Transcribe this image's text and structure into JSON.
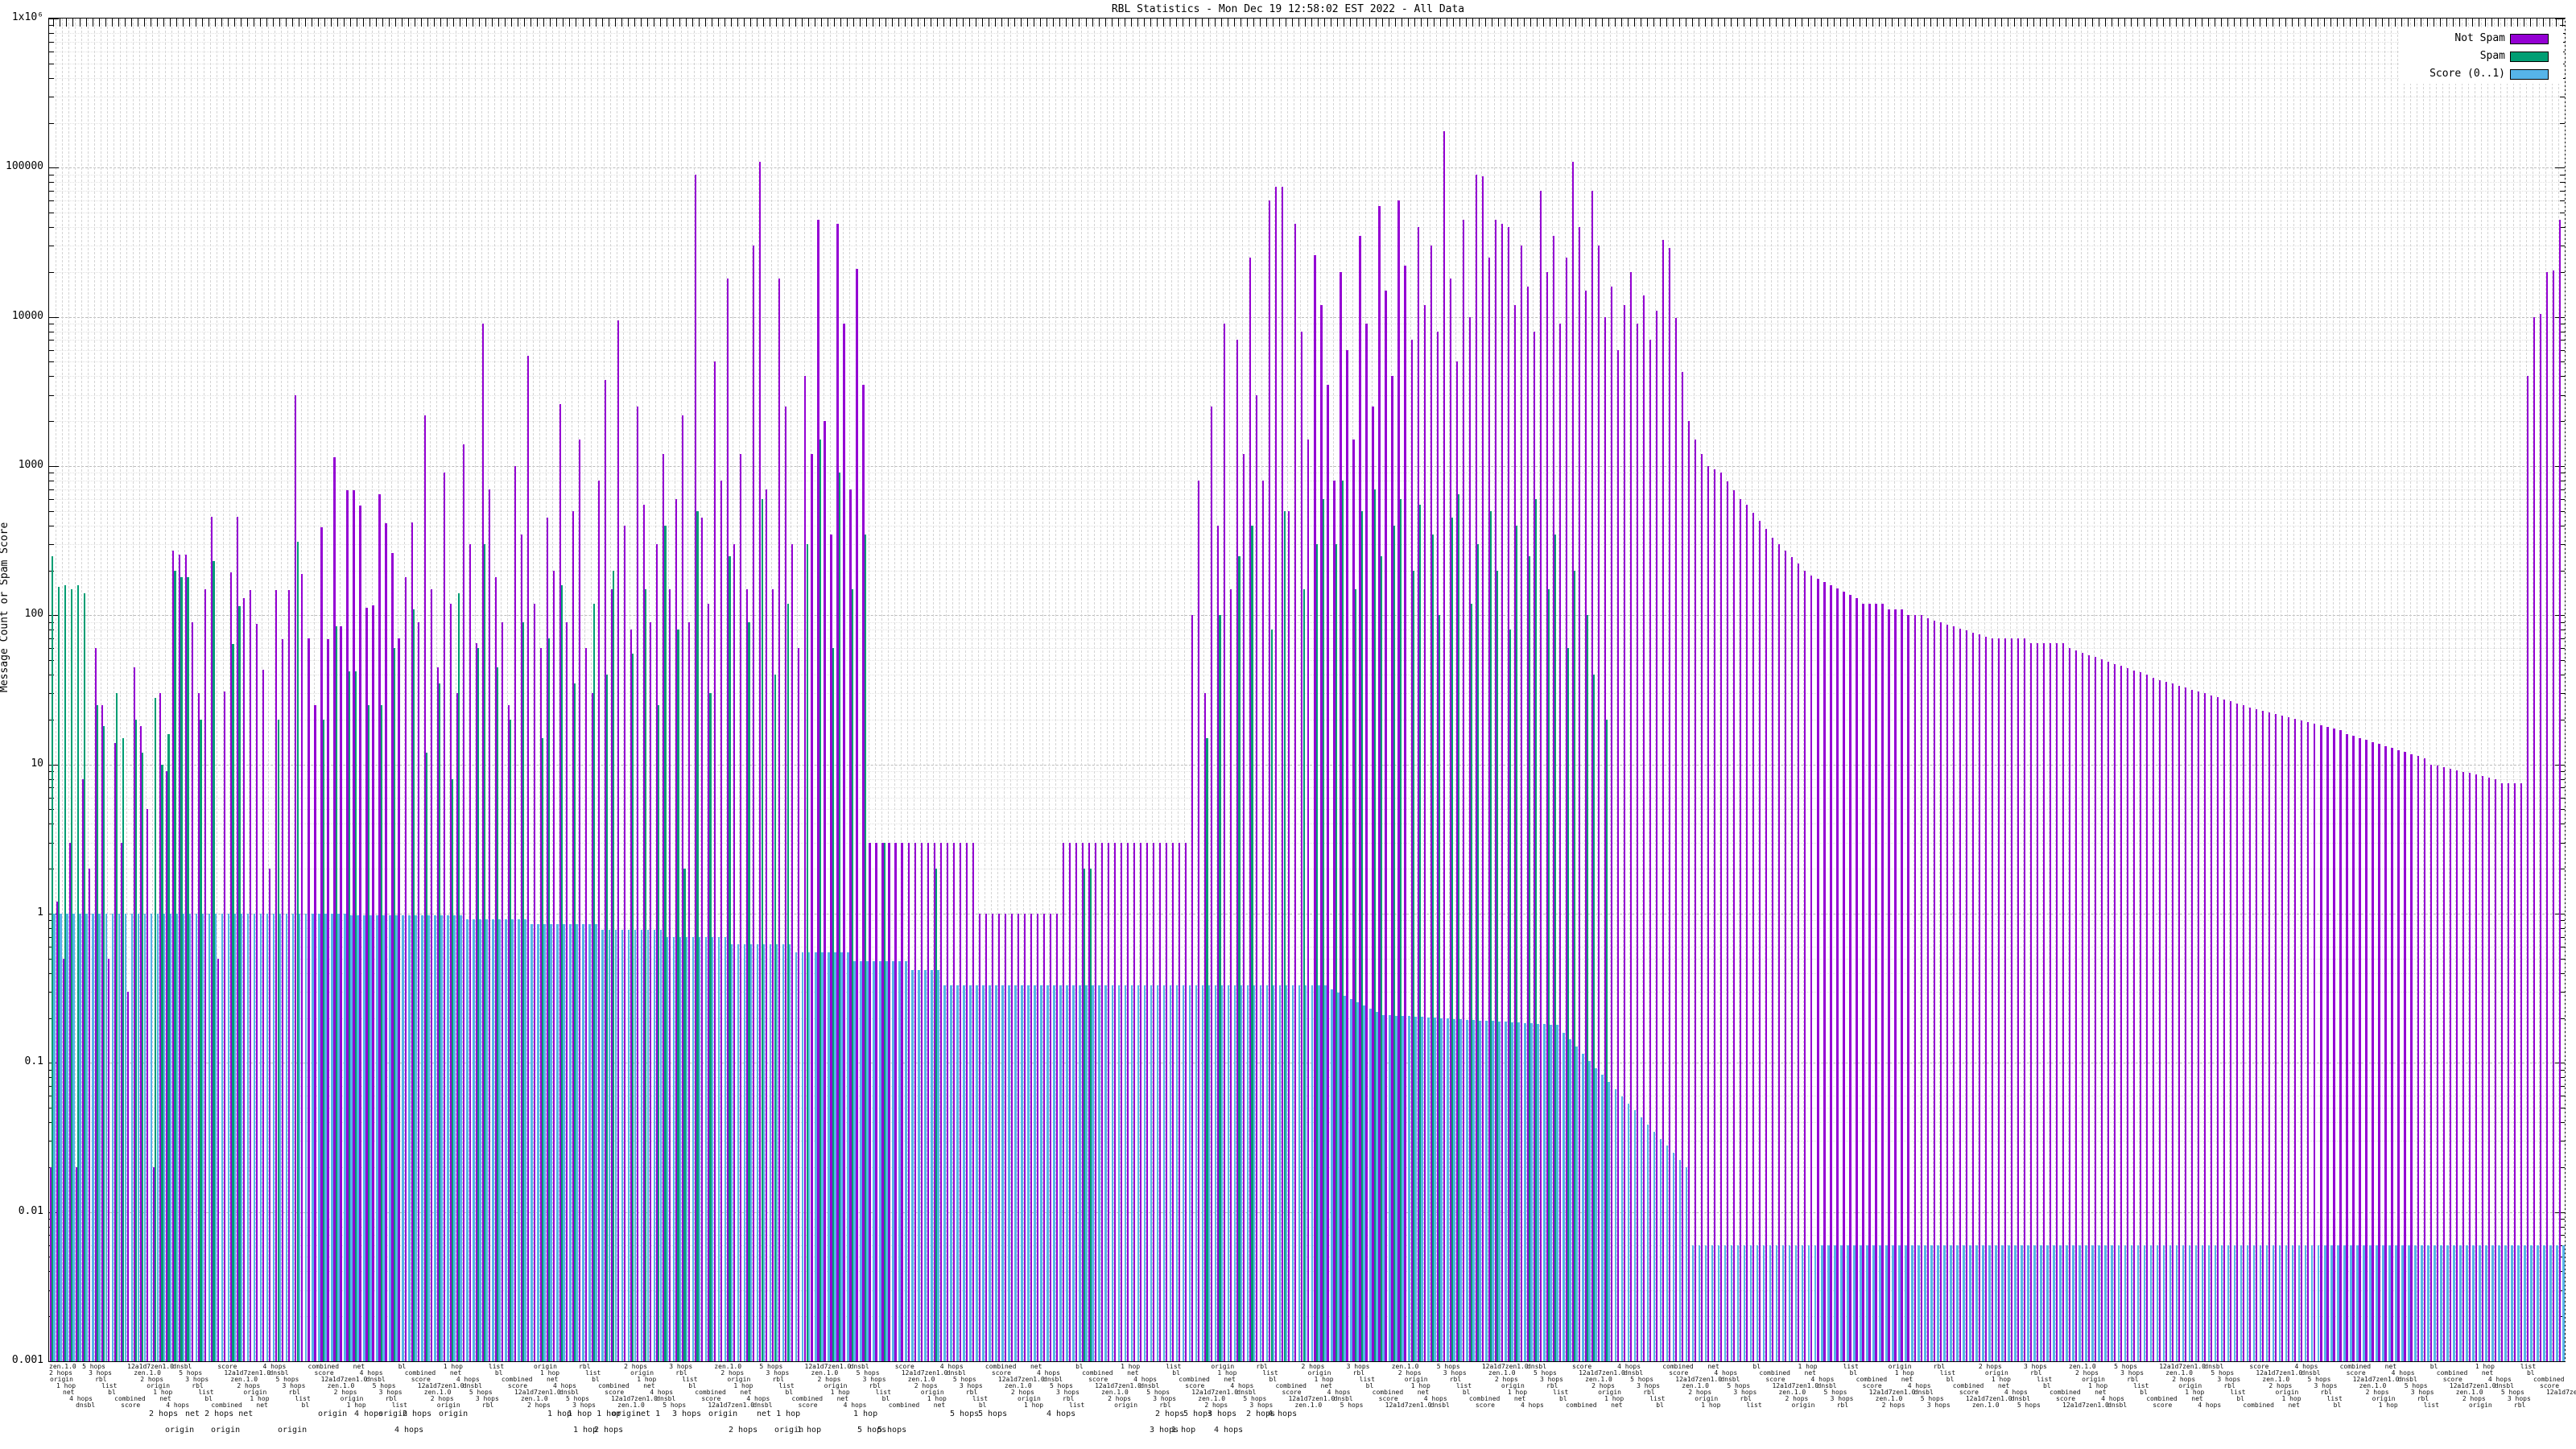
{
  "chart_data": {
    "type": "bar",
    "title": "RBL Statistics - Mon Dec 19 12:58:02 EST 2022 - All Data",
    "ylabel": "Message Count or Spam Score",
    "yscale": "log",
    "ylim": [
      0.001,
      1000000
    ],
    "ytick_values": [
      1000000,
      100000,
      10000,
      1000,
      100,
      10,
      1,
      0.1,
      0.01,
      0.001
    ],
    "ytick_labels": [
      "1x10⁶",
      "100000",
      "10000",
      "1000",
      "100",
      "10",
      "1",
      "0.1",
      "0.01",
      "0.001"
    ],
    "grid": true,
    "n_clusters": 390,
    "legend": {
      "position": "top-right",
      "entries": [
        {
          "label": "Not Spam",
          "color": "#9400d3"
        },
        {
          "label": "Spam",
          "color": "#009e73"
        },
        {
          "label": "Score (0..1)",
          "color": "#56b4e9"
        }
      ]
    },
    "xaxis": {
      "note": "about 390 RBL rule-name tick labels, horizontally overprinted and illegible at this scale",
      "band_tokens": [
        "zen.1.0",
        "2 hops",
        "origin",
        "1 hop",
        "net",
        "4 hops",
        "dnsbl",
        "5 hops",
        "3 hops",
        "rbl",
        "list",
        "bl",
        "combined",
        "score",
        "12a1d7zen1.0"
      ],
      "sublabels_row1": [
        {
          "x": 185,
          "text": "2 hops"
        },
        {
          "x": 230,
          "text": "net 2 hops net"
        },
        {
          "x": 395,
          "text": "origin"
        },
        {
          "x": 440,
          "text": "4 hops"
        },
        {
          "x": 470,
          "text": "origin"
        },
        {
          "x": 500,
          "text": "2 hops"
        },
        {
          "x": 545,
          "text": "origin"
        },
        {
          "x": 680,
          "text": "1 hop"
        },
        {
          "x": 705,
          "text": "1 hop 1 hop"
        },
        {
          "x": 760,
          "text": "origin"
        },
        {
          "x": 790,
          "text": "net 1"
        },
        {
          "x": 835,
          "text": "3 hops"
        },
        {
          "x": 880,
          "text": "origin"
        },
        {
          "x": 940,
          "text": "net 1 hop"
        },
        {
          "x": 1060,
          "text": "1 hop"
        },
        {
          "x": 1180,
          "text": "5 hops"
        },
        {
          "x": 1215,
          "text": "5 hops"
        },
        {
          "x": 1300,
          "text": "4 hops"
        },
        {
          "x": 1435,
          "text": "2 hops"
        },
        {
          "x": 1470,
          "text": "5 hops"
        },
        {
          "x": 1500,
          "text": "3 hops"
        },
        {
          "x": 1548,
          "text": "2 hops"
        },
        {
          "x": 1575,
          "text": "4 hops"
        }
      ],
      "sublabels_row2": [
        {
          "x": 205,
          "text": "origin"
        },
        {
          "x": 262,
          "text": "origin"
        },
        {
          "x": 345,
          "text": "origin"
        },
        {
          "x": 490,
          "text": "4 hops"
        },
        {
          "x": 712,
          "text": "1 hop"
        },
        {
          "x": 738,
          "text": "2 hops"
        },
        {
          "x": 905,
          "text": "2 hops"
        },
        {
          "x": 962,
          "text": "origin"
        },
        {
          "x": 990,
          "text": "1 hop"
        },
        {
          "x": 1065,
          "text": "5 hops"
        },
        {
          "x": 1090,
          "text": "5 hops"
        },
        {
          "x": 1428,
          "text": "3 hops"
        },
        {
          "x": 1455,
          "text": "1 hop"
        },
        {
          "x": 1508,
          "text": "4 hops"
        }
      ]
    },
    "rle_format": "entry = value | [count,value] | [count,from,to] geometric ramp",
    "series": [
      {
        "name": "Not Spam",
        "color": "#9400d3",
        "values_rle": [
          0.02,
          1.2,
          0.5,
          3,
          0.02,
          8,
          2,
          60,
          25,
          0.5,
          14,
          3,
          0.3,
          45,
          18,
          5,
          0.02,
          30,
          9,
          270,
          255,
          255,
          90,
          30,
          150,
          460,
          0.5,
          31,
          195,
          455,
          130,
          148,
          88,
          43,
          2,
          148,
          69,
          148,
          3000,
          190,
          70,
          25,
          390,
          69,
          1150,
          84,
          690,
          690,
          545,
          113,
          116,
          650,
          415,
          260,
          70,
          180,
          420,
          90,
          2200,
          150,
          45,
          900,
          120,
          30,
          1400,
          300,
          65,
          9000,
          700,
          180,
          90,
          25,
          1000,
          350,
          5500,
          120,
          60,
          450,
          200,
          2600,
          90,
          500,
          1500,
          60,
          30,
          800,
          3800,
          150,
          9500,
          400,
          80,
          2500,
          550,
          90,
          300,
          1200,
          150,
          600,
          2200,
          90,
          90000,
          450,
          120,
          5000,
          800,
          18000,
          300,
          1200,
          150,
          30000,
          110000,
          700,
          150,
          18000,
          2500,
          300,
          60,
          4000,
          1200,
          45000,
          2000,
          350,
          42000,
          9000,
          700,
          21000,
          3500,
          [
            17,
            3
          ],
          [
            13,
            1
          ],
          [
            20,
            3
          ],
          100,
          800,
          30,
          2500,
          400,
          9000,
          150,
          7000,
          1200,
          25000,
          3000,
          800,
          60000,
          75000,
          75000,
          500,
          42000,
          8000,
          1500,
          26000,
          12000,
          3500,
          800,
          20000,
          6000,
          1500,
          35000,
          9000,
          2500,
          55000,
          15000,
          4000,
          60000,
          22000,
          7000,
          40000,
          12000,
          30000,
          8000,
          175000,
          18000,
          5000,
          45000,
          10000,
          90000,
          88000,
          25000,
          45000,
          42000,
          40000,
          12000,
          30000,
          16000,
          8000,
          70000,
          20000,
          35000,
          9000,
          25000,
          110000,
          40000,
          15000,
          70000,
          30000,
          10000,
          16000,
          6000,
          12000,
          20000,
          9000,
          14000,
          7000,
          11000,
          33000,
          29000,
          9800,
          4300,
          2000,
          1500,
          1200,
          1000,
          950,
          [
            4,
            900,
            600
          ],
          [
            4,
            550,
            380
          ],
          [
            6,
            330,
            200
          ],
          [
            8,
            185,
            130
          ],
          [
            4,
            120
          ],
          [
            3,
            110
          ],
          [
            3,
            100
          ],
          [
            10,
            95,
            72
          ],
          [
            6,
            70
          ],
          [
            6,
            65
          ],
          [
            13,
            60,
            40
          ],
          [
            15,
            38,
            25
          ],
          [
            15,
            24,
            17
          ],
          [
            13,
            16,
            11
          ],
          [
            11,
            10,
            8
          ],
          [
            4,
            7.5
          ],
          4000,
          10000,
          10500,
          20000,
          20500,
          45000
        ]
      },
      {
        "name": "Spam",
        "color": "#009e73",
        "values_rle": [
          250,
          155,
          160,
          150,
          160,
          140,
          0,
          25,
          18,
          0,
          30,
          15,
          0,
          20,
          12,
          0,
          28,
          10,
          16,
          200,
          180,
          180,
          0,
          20,
          0,
          230,
          0,
          0,
          64,
          115,
          0,
          0,
          0,
          0,
          0,
          20,
          0,
          0,
          310,
          0,
          0,
          0,
          20,
          0,
          84,
          0,
          42,
          42,
          0,
          25,
          0,
          25,
          0,
          60,
          0,
          0,
          110,
          0,
          12,
          0,
          35,
          0,
          8,
          140,
          0,
          0,
          60,
          300,
          0,
          45,
          0,
          20,
          0,
          90,
          0,
          0,
          15,
          70,
          0,
          160,
          0,
          35,
          0,
          0,
          120,
          0,
          40,
          200,
          0,
          0,
          55,
          0,
          150,
          0,
          25,
          400,
          0,
          80,
          2,
          0,
          500,
          0,
          30,
          0,
          0,
          250,
          0,
          0,
          90,
          0,
          600,
          0,
          40,
          0,
          120,
          0,
          0,
          300,
          0,
          1500,
          0,
          60,
          900,
          0,
          150,
          0,
          350,
          [
            2,
            0
          ],
          3,
          [
            7,
            0
          ],
          2,
          [
            6,
            0
          ],
          [
            13,
            0
          ],
          [
            3,
            0
          ],
          2,
          2,
          [
            15,
            0
          ],
          [
            2,
            0
          ],
          15,
          0,
          100,
          [
            2,
            0
          ],
          250,
          0,
          400,
          [
            2,
            0
          ],
          80,
          0,
          500,
          [
            2,
            0
          ],
          150,
          0,
          300,
          600,
          0,
          300,
          800,
          0,
          150,
          500,
          0,
          700,
          250,
          0,
          400,
          600,
          0,
          200,
          550,
          0,
          350,
          100,
          0,
          450,
          650,
          0,
          120,
          300,
          0,
          500,
          200,
          0,
          80,
          400,
          0,
          250,
          600,
          0,
          150,
          350,
          0,
          60,
          200,
          0,
          100,
          40,
          0,
          20,
          [
            13,
            0
          ],
          [
            135,
            0
          ]
        ]
      },
      {
        "name": "Score (0..1)",
        "color": "#56b4e9",
        "values_rle": [
          [
            46,
            1.0
          ],
          [
            18,
            0.98
          ],
          [
            10,
            0.92
          ],
          [
            11,
            0.85
          ],
          [
            10,
            0.78
          ],
          [
            10,
            0.7
          ],
          [
            10,
            0.62
          ],
          [
            9,
            0.55
          ],
          [
            9,
            0.48
          ],
          [
            5,
            0.42
          ],
          [
            60,
            0.33
          ],
          [
            8,
            0.31,
            0.22
          ],
          [
            28,
            0.21,
            0.18
          ],
          [
            20,
            0.16,
            0.02
          ],
          [
            136,
            0.006
          ]
        ]
      }
    ]
  }
}
